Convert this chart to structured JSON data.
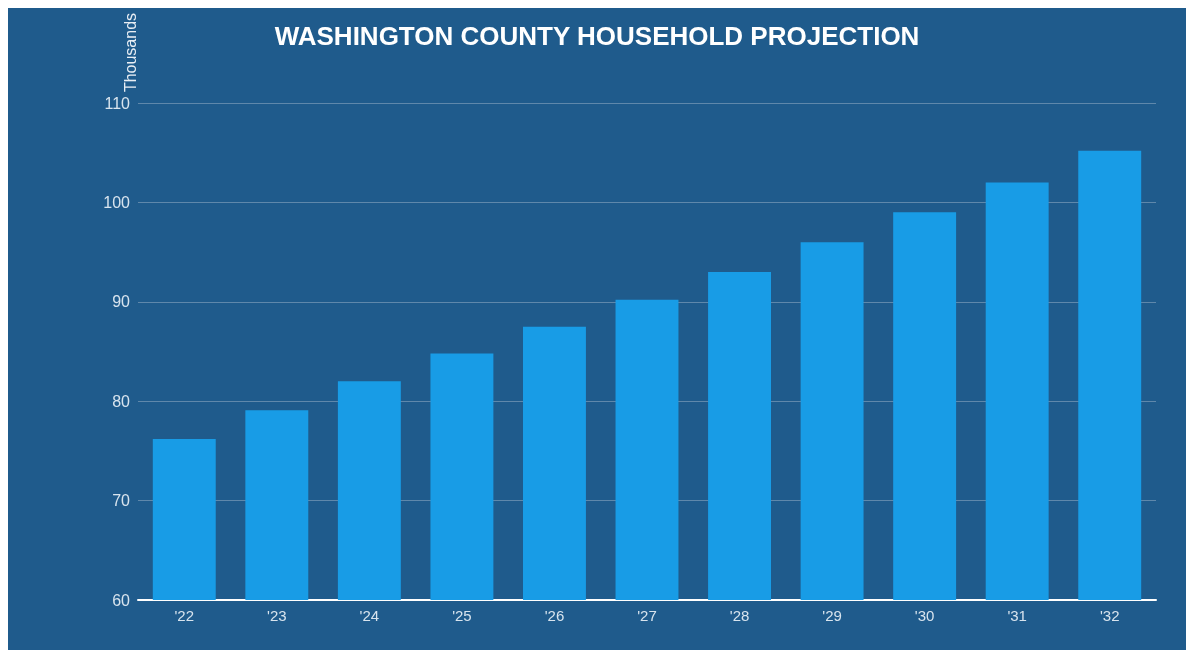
{
  "chart_data": {
    "type": "bar",
    "title": "WASHINGTON COUNTY HOUSEHOLD PROJECTION",
    "ylabel": "Thousands",
    "categories": [
      "'22",
      "'23",
      "'24",
      "'25",
      "'26",
      "'27",
      "'28",
      "'29",
      "'30",
      "'31",
      "'32"
    ],
    "values": [
      76.2,
      79.1,
      82.0,
      84.8,
      87.5,
      90.2,
      93.0,
      96.0,
      99.0,
      102.0,
      105.2
    ],
    "color": "#189ce6",
    "ylim": [
      60,
      110
    ],
    "yticks": [
      60,
      70,
      80,
      90,
      100,
      110
    ],
    "grid": "y"
  }
}
